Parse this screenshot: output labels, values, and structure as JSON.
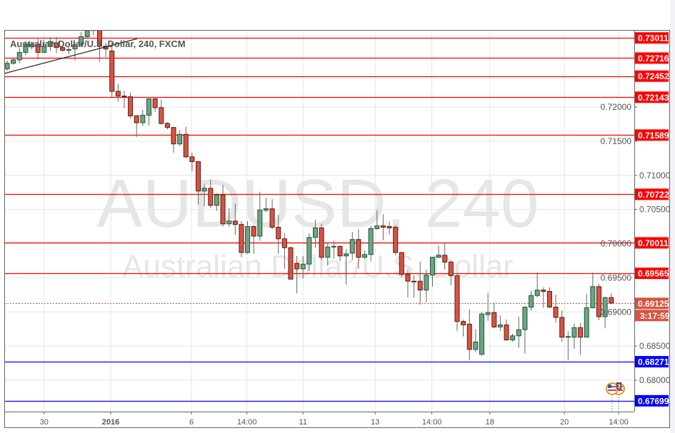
{
  "chart_title": "Australian Dollar/U.S. Dollar, 240, FXCM",
  "watermark": {
    "symbol_line": "AUDUSD, 240",
    "name_line": "Australian Dollar/U.S. Dollar"
  },
  "colors": {
    "up": "#6ba583",
    "up_border": "#225437",
    "down": "#d75442",
    "down_border": "#5b1a13",
    "resistance": "#ff0000",
    "support": "#0000ff",
    "last_price": "#d75442"
  },
  "last_price": {
    "value": 0.69125,
    "label": "0.69125",
    "countdown": "3:17:59"
  },
  "price_axis_ticks": [
    "0.72000",
    "0.71500",
    "0.71000",
    "0.70500",
    "0.70000",
    "0.69500",
    "0.69000",
    "0.68500",
    "0.68000"
  ],
  "horizontal_lines": [
    {
      "value": 0.73011,
      "label": "0.73011",
      "kind": "resistance"
    },
    {
      "value": 0.72716,
      "label": "0.72716",
      "kind": "resistance"
    },
    {
      "value": 0.72452,
      "label": "0.72452",
      "kind": "resistance"
    },
    {
      "value": 0.72143,
      "label": "0.72143",
      "kind": "resistance"
    },
    {
      "value": 0.71589,
      "label": "0.71589",
      "kind": "resistance"
    },
    {
      "value": 0.70722,
      "label": "0.70722",
      "kind": "resistance"
    },
    {
      "value": 0.70011,
      "label": "0.70011",
      "kind": "resistance"
    },
    {
      "value": 0.69565,
      "label": "0.69565",
      "kind": "resistance"
    },
    {
      "value": 0.68271,
      "label": "0.68271",
      "kind": "support"
    },
    {
      "value": 0.67699,
      "label": "0.67699",
      "kind": "support"
    }
  ],
  "time_axis": [
    {
      "label": "30",
      "bar": 6.0,
      "bold": false
    },
    {
      "label": "2016",
      "bar": 16.8,
      "bold": true
    },
    {
      "label": "6",
      "bar": 29.9,
      "bold": false
    },
    {
      "label": "14:00",
      "bar": 38.9,
      "bold": false
    },
    {
      "label": "11",
      "bar": 48.0,
      "bold": false
    },
    {
      "label": "13",
      "bar": 59.7,
      "bold": false
    },
    {
      "label": "14:00",
      "bar": 68.9,
      "bold": false
    },
    {
      "label": "18",
      "bar": 78.3,
      "bold": false
    },
    {
      "label": "20",
      "bar": 90.4,
      "bold": false
    },
    {
      "label": "14:00",
      "bar": 99.2,
      "bold": false
    }
  ],
  "trendline": {
    "from": [
      -0.5,
      0.7249
    ],
    "to": [
      21.1,
      0.73
    ]
  },
  "events": {
    "icon": "us-flag-icon",
    "count": "3"
  },
  "chart_data": {
    "type": "candlestick",
    "symbol": "AUDUSD",
    "timeframe": "240",
    "ylim": [
      0.675,
      0.733
    ],
    "grid": true,
    "ohlc": [
      [
        0.7256,
        0.7268,
        0.7253,
        0.7264
      ],
      [
        0.7264,
        0.7272,
        0.7262,
        0.7269
      ],
      [
        0.7269,
        0.7287,
        0.7264,
        0.728
      ],
      [
        0.728,
        0.7297,
        0.7276,
        0.7292
      ],
      [
        0.7288,
        0.7296,
        0.7284,
        0.7292
      ],
      [
        0.7292,
        0.73,
        0.727,
        0.728
      ],
      [
        0.728,
        0.7296,
        0.7279,
        0.7289
      ],
      [
        0.7289,
        0.7302,
        0.7282,
        0.7296
      ],
      [
        0.7294,
        0.7303,
        0.7279,
        0.7287
      ],
      [
        0.7287,
        0.7289,
        0.7281,
        0.7283
      ],
      [
        0.7283,
        0.7288,
        0.7277,
        0.7284
      ],
      [
        0.7285,
        0.7294,
        0.7268,
        0.7291
      ],
      [
        0.7291,
        0.731,
        0.7289,
        0.7303
      ],
      [
        0.7303,
        0.7315,
        0.73,
        0.7312
      ],
      [
        0.7312,
        0.7325,
        0.7305,
        0.7318
      ],
      [
        0.7318,
        0.732,
        0.7266,
        0.7289
      ],
      [
        0.7289,
        0.7294,
        0.7273,
        0.7285
      ],
      [
        0.7282,
        0.7294,
        0.7214,
        0.7223
      ],
      [
        0.7223,
        0.7234,
        0.7208,
        0.7216
      ],
      [
        0.7216,
        0.7224,
        0.7198,
        0.7215
      ],
      [
        0.7215,
        0.7221,
        0.7183,
        0.7187
      ],
      [
        0.7187,
        0.7188,
        0.7156,
        0.7177
      ],
      [
        0.7177,
        0.7196,
        0.7172,
        0.7188
      ],
      [
        0.7188,
        0.7211,
        0.7173,
        0.7212
      ],
      [
        0.7212,
        0.7213,
        0.7193,
        0.7199
      ],
      [
        0.7199,
        0.7211,
        0.7174,
        0.7176
      ],
      [
        0.7176,
        0.7178,
        0.7167,
        0.717
      ],
      [
        0.717,
        0.7171,
        0.7133,
        0.7146
      ],
      [
        0.7146,
        0.7166,
        0.7143,
        0.716
      ],
      [
        0.716,
        0.7171,
        0.7125,
        0.7127
      ],
      [
        0.7127,
        0.7133,
        0.7106,
        0.712
      ],
      [
        0.712,
        0.7121,
        0.7057,
        0.7077
      ],
      [
        0.7077,
        0.7087,
        0.7055,
        0.7081
      ],
      [
        0.7081,
        0.7094,
        0.7052,
        0.7056
      ],
      [
        0.7056,
        0.7074,
        0.7048,
        0.7071
      ],
      [
        0.7071,
        0.7086,
        0.7025,
        0.7029
      ],
      [
        0.7029,
        0.7052,
        0.7025,
        0.7033
      ],
      [
        0.7033,
        0.7059,
        0.7013,
        0.7028
      ],
      [
        0.7028,
        0.7033,
        0.698,
        0.6987
      ],
      [
        0.6987,
        0.7033,
        0.6985,
        0.7025
      ],
      [
        0.7025,
        0.7027,
        0.6985,
        0.7011
      ],
      [
        0.7011,
        0.7076,
        0.7004,
        0.7049
      ],
      [
        0.7049,
        0.7067,
        0.7046,
        0.7051
      ],
      [
        0.7051,
        0.7065,
        0.7021,
        0.7024
      ],
      [
        0.7024,
        0.7042,
        0.6985,
        0.7007
      ],
      [
        0.7007,
        0.7015,
        0.6963,
        0.6994
      ],
      [
        0.6994,
        0.6996,
        0.6948,
        0.6948
      ],
      [
        0.6971,
        0.6982,
        0.6927,
        0.6963
      ],
      [
        0.6963,
        0.6982,
        0.6949,
        0.697
      ],
      [
        0.697,
        0.7015,
        0.696,
        0.7009
      ],
      [
        0.7009,
        0.7035,
        0.6994,
        0.7023
      ],
      [
        0.7023,
        0.7029,
        0.6976,
        0.698
      ],
      [
        0.698,
        0.7001,
        0.6968,
        0.6995
      ],
      [
        0.6995,
        0.7004,
        0.6978,
        0.6996
      ],
      [
        0.6996,
        0.6997,
        0.6974,
        0.6982
      ],
      [
        0.6982,
        0.6992,
        0.694,
        0.6985
      ],
      [
        0.6986,
        0.7017,
        0.6976,
        0.7006
      ],
      [
        0.7006,
        0.7021,
        0.6963,
        0.698
      ],
      [
        0.698,
        0.699,
        0.6978,
        0.6984
      ],
      [
        0.6984,
        0.7026,
        0.6974,
        0.7022
      ],
      [
        0.7022,
        0.7049,
        0.702,
        0.7026
      ],
      [
        0.7026,
        0.7043,
        0.7005,
        0.7024
      ],
      [
        0.7025,
        0.7032,
        0.7013,
        0.7023
      ],
      [
        0.7024,
        0.7027,
        0.6983,
        0.6987
      ],
      [
        0.6987,
        0.6987,
        0.6951,
        0.6955
      ],
      [
        0.6955,
        0.6962,
        0.6921,
        0.6945
      ],
      [
        0.6945,
        0.6954,
        0.6921,
        0.6944
      ],
      [
        0.6945,
        0.6974,
        0.6911,
        0.6932
      ],
      [
        0.6932,
        0.6962,
        0.6914,
        0.6954
      ],
      [
        0.6954,
        0.698,
        0.6937,
        0.698
      ],
      [
        0.698,
        0.6997,
        0.6979,
        0.6983
      ],
      [
        0.6983,
        0.7002,
        0.6962,
        0.6973
      ],
      [
        0.6973,
        0.6975,
        0.6939,
        0.6953
      ],
      [
        0.6953,
        0.6957,
        0.6872,
        0.6886
      ],
      [
        0.6886,
        0.6889,
        0.6864,
        0.6881
      ],
      [
        0.6882,
        0.6904,
        0.6829,
        0.6845
      ],
      [
        0.6845,
        0.6875,
        0.6841,
        0.6856
      ],
      [
        0.6838,
        0.69,
        0.6836,
        0.6897
      ],
      [
        0.6896,
        0.6928,
        0.6887,
        0.6899
      ],
      [
        0.6899,
        0.6914,
        0.6876,
        0.6878
      ],
      [
        0.6878,
        0.6895,
        0.6872,
        0.6881
      ],
      [
        0.6881,
        0.6889,
        0.6858,
        0.6859
      ],
      [
        0.6859,
        0.6868,
        0.6856,
        0.6865
      ],
      [
        0.6865,
        0.6893,
        0.6848,
        0.6874
      ],
      [
        0.6874,
        0.6908,
        0.6839,
        0.6907
      ],
      [
        0.6907,
        0.6931,
        0.6902,
        0.6924
      ],
      [
        0.6924,
        0.6958,
        0.6921,
        0.6932
      ],
      [
        0.6932,
        0.6936,
        0.6906,
        0.693
      ],
      [
        0.693,
        0.6936,
        0.6906,
        0.6907
      ],
      [
        0.6907,
        0.6925,
        0.6884,
        0.6892
      ],
      [
        0.6892,
        0.6902,
        0.6856,
        0.6863
      ],
      [
        0.6863,
        0.6872,
        0.6829,
        0.6864
      ],
      [
        0.6863,
        0.6883,
        0.6846,
        0.6877
      ],
      [
        0.6877,
        0.6884,
        0.6837,
        0.6863
      ],
      [
        0.6863,
        0.6926,
        0.6863,
        0.6906
      ],
      [
        0.6906,
        0.6958,
        0.6906,
        0.6937
      ],
      [
        0.6937,
        0.6941,
        0.6888,
        0.6893
      ],
      [
        0.6893,
        0.6922,
        0.6876,
        0.6921
      ],
      [
        0.6921,
        0.6927,
        0.6911,
        0.6913
      ]
    ]
  }
}
